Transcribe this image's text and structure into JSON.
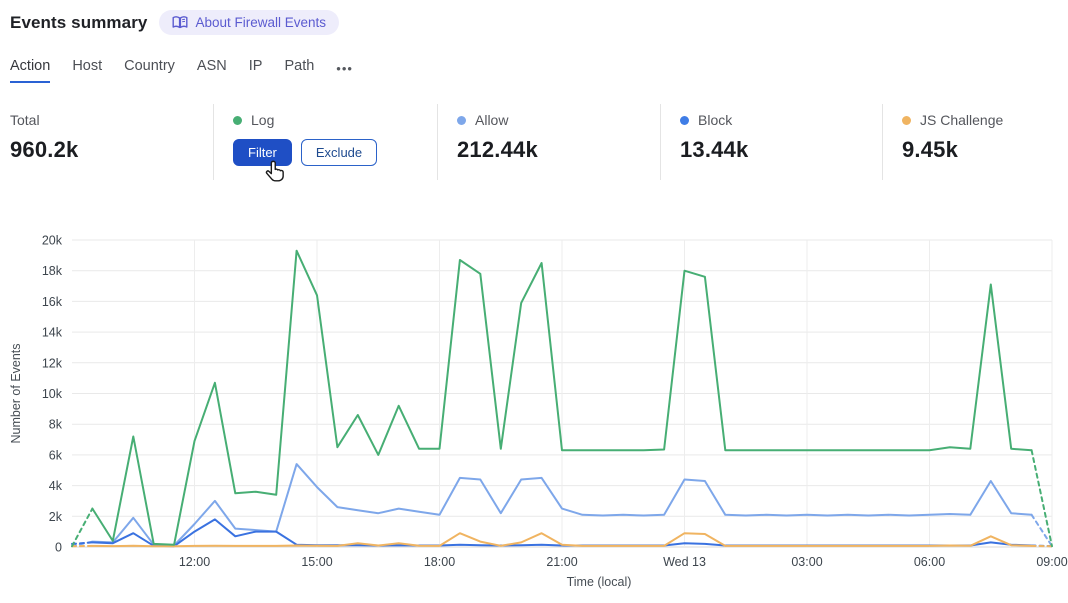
{
  "header": {
    "title": "Events summary",
    "about_badge": "About Firewall Events",
    "badge_color": "#5b5bd0",
    "badge_bg": "#eeedfb"
  },
  "tabs": {
    "items": [
      {
        "label": "Action",
        "active": true
      },
      {
        "label": "Host",
        "active": false
      },
      {
        "label": "Country",
        "active": false
      },
      {
        "label": "ASN",
        "active": false
      },
      {
        "label": "IP",
        "active": false
      },
      {
        "label": "Path",
        "active": false
      }
    ],
    "more_label": "•••",
    "active_underline_color": "#2a62d4"
  },
  "stats": {
    "total": {
      "label": "Total",
      "value": "960.2k"
    },
    "log": {
      "label": "Log",
      "color": "#47ae74",
      "filter_label": "Filter",
      "exclude_label": "Exclude",
      "filter_bg": "#1f4fc5"
    },
    "allow": {
      "label": "Allow",
      "value": "212.44k",
      "color": "#7ea7ea"
    },
    "block": {
      "label": "Block",
      "value": "13.44k",
      "color": "#3f7de6"
    },
    "js_challenge": {
      "label": "JS Challenge",
      "value": "9.45k",
      "color": "#f0b461"
    }
  },
  "chart_data": {
    "type": "line",
    "xlabel": "Time (local)",
    "ylabel": "Number of Events",
    "ylim": [
      0,
      20000
    ],
    "y_ticks": [
      "0",
      "2k",
      "4k",
      "6k",
      "8k",
      "10k",
      "12k",
      "14k",
      "16k",
      "18k",
      "20k"
    ],
    "grid": true,
    "legend_position": "stats-row-above",
    "edge_segments_dashed": true,
    "x": [
      "09:00",
      "09:30",
      "10:00",
      "10:30",
      "11:00",
      "11:30",
      "12:00",
      "12:30",
      "13:00",
      "13:30",
      "14:00",
      "14:30",
      "15:00",
      "15:30",
      "16:00",
      "16:30",
      "17:00",
      "17:30",
      "18:00",
      "18:30",
      "19:00",
      "19:30",
      "20:00",
      "20:30",
      "21:00",
      "21:30",
      "22:00",
      "22:30",
      "23:00",
      "23:30",
      "Wed 13",
      "00:30",
      "01:00",
      "01:30",
      "02:00",
      "02:30",
      "03:00",
      "03:30",
      "04:00",
      "04:30",
      "05:00",
      "05:30",
      "06:00",
      "06:30",
      "07:00",
      "07:30",
      "08:00",
      "08:30",
      "09:00"
    ],
    "x_tick_indices": [
      6,
      12,
      18,
      24,
      30,
      36,
      42,
      48
    ],
    "x_tick_labels": [
      "12:00",
      "15:00",
      "18:00",
      "21:00",
      "Wed 13",
      "03:00",
      "06:00",
      "09:00"
    ],
    "series": [
      {
        "name": "Allow",
        "color": "#7ea7ea",
        "values": [
          50,
          350,
          300,
          1900,
          150,
          100,
          1500,
          3000,
          1200,
          1100,
          1000,
          5400,
          3900,
          2600,
          2400,
          2200,
          2500,
          2300,
          2100,
          4500,
          4400,
          2200,
          4400,
          4500,
          2500,
          2100,
          2050,
          2100,
          2050,
          2100,
          4400,
          4300,
          2100,
          2050,
          2100,
          2050,
          2100,
          2050,
          2100,
          2050,
          2100,
          2050,
          2100,
          2150,
          2100,
          4300,
          2200,
          2100,
          50
        ]
      },
      {
        "name": "Block",
        "color": "#3a72e0",
        "values": [
          200,
          300,
          250,
          900,
          80,
          50,
          1000,
          1800,
          700,
          1000,
          1000,
          150,
          120,
          120,
          120,
          100,
          120,
          100,
          100,
          150,
          120,
          100,
          120,
          150,
          100,
          100,
          100,
          100,
          100,
          100,
          250,
          200,
          100,
          100,
          100,
          100,
          100,
          100,
          100,
          100,
          100,
          100,
          100,
          100,
          100,
          300,
          150,
          100,
          50
        ]
      },
      {
        "name": "JS Challenge",
        "color": "#f0b461",
        "values": [
          50,
          70,
          60,
          80,
          50,
          50,
          70,
          80,
          70,
          70,
          70,
          100,
          80,
          70,
          250,
          100,
          250,
          80,
          70,
          900,
          350,
          80,
          300,
          900,
          150,
          70,
          70,
          70,
          70,
          70,
          900,
          850,
          70,
          70,
          70,
          70,
          70,
          70,
          70,
          70,
          70,
          70,
          70,
          100,
          80,
          700,
          120,
          70,
          50
        ]
      },
      {
        "name": "Log",
        "color": "#47ae74",
        "values": [
          50,
          2500,
          400,
          7200,
          200,
          150,
          6900,
          10700,
          3500,
          3600,
          3400,
          19300,
          16400,
          6500,
          8600,
          6000,
          9200,
          6400,
          6400,
          18700,
          17800,
          6400,
          15900,
          18500,
          6300,
          6300,
          6300,
          6300,
          6300,
          6350,
          18000,
          17600,
          6300,
          6300,
          6300,
          6300,
          6300,
          6300,
          6300,
          6300,
          6300,
          6300,
          6300,
          6500,
          6400,
          17100,
          6400,
          6300,
          50
        ]
      }
    ]
  }
}
